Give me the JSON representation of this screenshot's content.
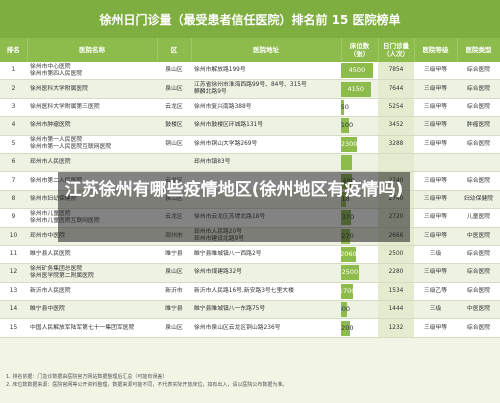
{
  "title": "徐州日门诊量（最受患者信任医院）排名前 15 医院榜单",
  "headers": [
    "排名",
    "医院名称",
    "区",
    "医院地址",
    "床位数（张）",
    "日门诊量（人次）",
    "医院等级",
    "医院类型"
  ],
  "rows": [
    {
      "rank": "1",
      "name": "徐州市中心医院\n徐州市第四人民医院",
      "district": "泉山区",
      "address": "徐州市解放路199号",
      "beds": "4500",
      "beds_fill": 0.86,
      "visits": "7854",
      "level": "三级甲等",
      "type": "综合医院"
    },
    {
      "rank": "2",
      "name": "徐州医科大学附属医院",
      "district": "泉山区",
      "address": "江苏省徐州市淮海西路99号、84号、315号\n麒麟北路9号",
      "beds": "4150",
      "beds_fill": 0.8,
      "visits": "7644",
      "level": "三级甲等",
      "type": "综合医院"
    },
    {
      "rank": "3",
      "name": "徐州医科大学附属第三医院",
      "district": "云龙区",
      "address": "徐州市复兴南路388号",
      "beds": "450",
      "beds_fill": 0.09,
      "visits": "5254",
      "level": "三级甲等",
      "type": "综合医院"
    },
    {
      "rank": "4",
      "name": "徐州市肿瘤医院",
      "district": "鼓楼区",
      "address": "徐州市鼓楼区环城路131号",
      "beds": "1100",
      "beds_fill": 0.21,
      "visits": "3452",
      "level": "三级甲等",
      "type": "肿瘤医院"
    },
    {
      "rank": "5",
      "name": "徐州市第一人民医院\n徐州市第一人民医院互联网医院",
      "district": "铜山区",
      "address": "徐州市铜山大学路269号",
      "beds": "2300",
      "beds_fill": 0.44,
      "visits": "3288",
      "level": "三级甲等",
      "type": "综合医院"
    },
    {
      "rank": "6",
      "name": "邳州市人民医院",
      "district": "",
      "address": "邳州市镇83号",
      "beds": "",
      "beds_fill": 0.3,
      "visits": "",
      "level": "",
      "type": ""
    },
    {
      "rank": "7",
      "name": "徐州市第二人民医院",
      "district": "云龙区",
      "address": "",
      "beds": "1490",
      "beds_fill": 0.29,
      "visits": "2740",
      "level": "三级甲等",
      "type": "综合医院"
    },
    {
      "rank": "8",
      "name": "徐州市妇幼保健院",
      "district": "泉山区",
      "address": "",
      "beds": "718",
      "beds_fill": 0.14,
      "visits": "2740",
      "level": "三级甲等",
      "type": "妇幼保健院"
    },
    {
      "rank": "9",
      "name": "徐州市儿童医院\n徐州市儿童医院互联网医院",
      "district": "云龙区",
      "address": "徐州市云龙区苏堤北路18号",
      "beds": "1370",
      "beds_fill": 0.26,
      "visits": "2720",
      "level": "三级甲等",
      "type": "儿童医院"
    },
    {
      "rank": "10",
      "name": "邳州市中医院",
      "district": "邳州市",
      "address": "邳州市人民路20号\n邳州市建设北路9号",
      "beds": "1270",
      "beds_fill": 0.24,
      "visits": "2666",
      "level": "三级甲等",
      "type": "中医医院"
    },
    {
      "rank": "11",
      "name": "睢宁县人民医院",
      "district": "睢宁县",
      "address": "睢宁县睢城镇八一西路2号",
      "beds": "2060",
      "beds_fill": 0.4,
      "visits": "2500",
      "level": "三级",
      "type": "综合医院"
    },
    {
      "rank": "12",
      "name": "徐州矿务集团总医院\n徐州医学院第二附属医院",
      "district": "泉山区",
      "address": "徐州市煤建路32号",
      "beds": "2500",
      "beds_fill": 0.48,
      "visits": "2280",
      "level": "三级甲等",
      "type": "综合医院"
    },
    {
      "rank": "13",
      "name": "新沂市人民医院",
      "district": "新沂市",
      "address": "新沂市人民路16号,新安路3号七里大楼",
      "beds": "1700",
      "beds_fill": 0.33,
      "visits": "1534",
      "level": "三级乙等",
      "type": "综合医院"
    },
    {
      "rank": "14",
      "name": "睢宁县中医院",
      "district": "睢宁县",
      "address": "睢宁县睢城镇八一东路75号",
      "beds": "800",
      "beds_fill": 0.15,
      "visits": "1444",
      "level": "三级",
      "type": "中医医院"
    },
    {
      "rank": "15",
      "name": "中国人民解放军陆军第七十一集团军医院",
      "district": "泉山区",
      "address": "徐州市泉山区云龙区铜山路236号",
      "beds": "1200",
      "beds_fill": 0.23,
      "visits": "1232",
      "level": "三级甲等",
      "type": "综合医院"
    }
  ],
  "footnotes": [
    "1. 排名依据：门急诊数据由医院官方网站数据整理后汇总（可能有误差）",
    "2. 床位数数据来源：医院官网等公开资料整理，数据来源可能不同，不代表实际开放床位，如有出入，请以医院公布数据为准。"
  ],
  "overlay_text": "江苏徐州有哪些疫情地区(徐州地区有疫情吗)"
}
